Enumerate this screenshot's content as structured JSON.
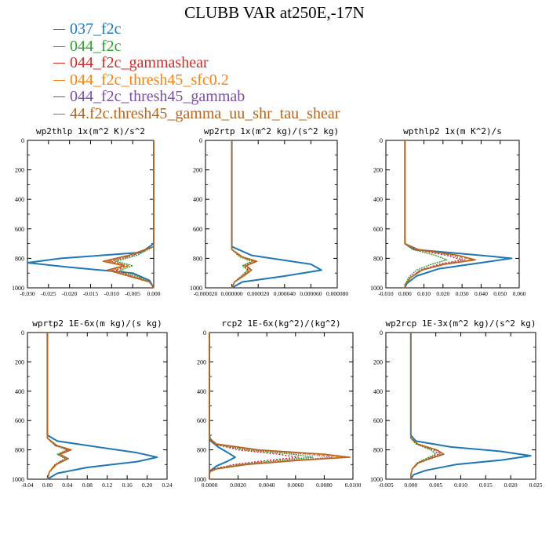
{
  "title": "CLUBB VAR at250E,-17N",
  "legend": [
    {
      "label": "037_f2c",
      "color": "#1f77b4"
    },
    {
      "label": "044_f2c",
      "color": "#2ca02c"
    },
    {
      "label": "044_f2c_gammashear",
      "color": "#d62728"
    },
    {
      "label": "044_f2c_thresh45_sfc0.2",
      "color": "#ff7f0e"
    },
    {
      "label": "044_f2c_thresh45_gammab",
      "color": "#7b4fa8"
    },
    {
      "label": "44.f2c.thresh45_gamma_uu_shr_tau_shear",
      "color": "#b5651d"
    }
  ],
  "chart_data": [
    {
      "type": "line",
      "title": "wp2thlp   1x(m^2 K)/s^2",
      "xlim": [
        -0.03,
        0.0
      ],
      "ylim": [
        1000,
        0
      ],
      "y_inverted": true,
      "xticks": [
        "-0.030",
        "-0.025",
        "-0.020",
        "-0.015",
        "-0.010",
        "-0.005",
        "0.000"
      ],
      "yticks": [
        "0",
        "200",
        "400",
        "600",
        "800",
        "1000"
      ],
      "series": [
        {
          "y": [
            0,
            700,
            760,
            800,
            830,
            860,
            900,
            950,
            1000
          ],
          "x": [
            0,
            0,
            -0.003,
            -0.022,
            -0.03,
            -0.02,
            -0.005,
            -0.001,
            0
          ]
        },
        {
          "y": [
            0,
            720,
            780,
            820,
            850,
            880,
            920,
            960,
            1000
          ],
          "x": [
            0,
            0,
            -0.004,
            -0.009,
            -0.005,
            -0.008,
            -0.004,
            -0.001,
            0
          ]
        },
        {
          "y": [
            0,
            720,
            780,
            820,
            850,
            880,
            920,
            960,
            1000
          ],
          "x": [
            0,
            0,
            -0.005,
            -0.01,
            -0.006,
            -0.009,
            -0.005,
            -0.001,
            0
          ]
        },
        {
          "y": [
            0,
            720,
            780,
            820,
            850,
            880,
            920,
            960,
            1000
          ],
          "x": [
            0,
            0,
            -0.005,
            -0.011,
            -0.006,
            -0.01,
            -0.005,
            -0.001,
            0
          ]
        },
        {
          "y": [
            0,
            720,
            780,
            820,
            850,
            880,
            920,
            960,
            1000
          ],
          "x": [
            0,
            0,
            -0.005,
            -0.011,
            -0.007,
            -0.01,
            -0.005,
            -0.001,
            0
          ]
        },
        {
          "y": [
            0,
            720,
            780,
            820,
            850,
            880,
            920,
            960,
            1000
          ],
          "x": [
            0,
            0,
            -0.006,
            -0.012,
            -0.007,
            -0.011,
            -0.006,
            -0.001,
            0
          ]
        }
      ]
    },
    {
      "type": "line",
      "title": "wp2rtp   1x(m^2 kg)/(s^2 kg)",
      "xlim": [
        -2e-05,
        8e-05
      ],
      "ylim": [
        1000,
        0
      ],
      "y_inverted": true,
      "xticks": [
        "-0.000020",
        "0.000000",
        "0.000020",
        "0.000040",
        "0.000060",
        "0.000080"
      ],
      "yticks": [
        "0",
        "200",
        "400",
        "600",
        "800",
        "1000"
      ],
      "series": [
        {
          "y": [
            0,
            720,
            780,
            840,
            880,
            920,
            960,
            1000
          ],
          "x": [
            0,
            0,
            1.5e-05,
            6e-05,
            6.8e-05,
            4e-05,
            8e-06,
            0
          ]
        },
        {
          "y": [
            0,
            740,
            790,
            820,
            850,
            880,
            920,
            960,
            1000
          ],
          "x": [
            0,
            0,
            6e-06,
            1.5e-05,
            8e-06,
            1.2e-05,
            7e-06,
            2e-06,
            0
          ]
        },
        {
          "y": [
            0,
            740,
            790,
            820,
            850,
            880,
            920,
            960,
            1000
          ],
          "x": [
            0,
            0,
            7e-06,
            1.7e-05,
            9e-06,
            1.3e-05,
            8e-06,
            2e-06,
            0
          ]
        },
        {
          "y": [
            0,
            740,
            790,
            820,
            850,
            880,
            920,
            960,
            1000
          ],
          "x": [
            0,
            0,
            7e-06,
            1.8e-05,
            1e-05,
            1.4e-05,
            8e-06,
            2e-06,
            0
          ]
        },
        {
          "y": [
            0,
            740,
            790,
            820,
            850,
            880,
            920,
            960,
            1000
          ],
          "x": [
            0,
            0,
            8e-06,
            1.8e-05,
            1e-05,
            1.5e-05,
            8e-06,
            2e-06,
            0
          ]
        },
        {
          "y": [
            0,
            740,
            790,
            820,
            850,
            880,
            920,
            960,
            1000
          ],
          "x": [
            0,
            0,
            8e-06,
            1.9e-05,
            1.1e-05,
            1.5e-05,
            9e-06,
            2e-06,
            0
          ]
        }
      ]
    },
    {
      "type": "line",
      "title": "wpthlp2   1x(m K^2)/s",
      "xlim": [
        -0.01,
        0.06
      ],
      "ylim": [
        1000,
        0
      ],
      "y_inverted": true,
      "xticks": [
        "-0.010",
        "0.000",
        "0.010",
        "0.020",
        "0.030",
        "0.040",
        "0.050",
        "0.060"
      ],
      "yticks": [
        "0",
        "200",
        "400",
        "600",
        "800",
        "1000"
      ],
      "series": [
        {
          "y": [
            0,
            700,
            740,
            780,
            800,
            830,
            870,
            920,
            970,
            1000
          ],
          "x": [
            0,
            0,
            0.005,
            0.04,
            0.056,
            0.04,
            0.018,
            0.006,
            0.001,
            0
          ]
        },
        {
          "y": [
            0,
            700,
            740,
            780,
            810,
            840,
            880,
            930,
            980,
            1000
          ],
          "x": [
            0,
            0,
            0.004,
            0.016,
            0.022,
            0.014,
            0.006,
            0.002,
            0,
            0
          ]
        },
        {
          "y": [
            0,
            700,
            740,
            780,
            810,
            840,
            880,
            930,
            980,
            1000
          ],
          "x": [
            0,
            0,
            0.005,
            0.022,
            0.03,
            0.018,
            0.008,
            0.003,
            0,
            0
          ]
        },
        {
          "y": [
            0,
            700,
            740,
            780,
            810,
            840,
            880,
            930,
            980,
            1000
          ],
          "x": [
            0,
            0,
            0.006,
            0.026,
            0.035,
            0.02,
            0.009,
            0.003,
            0,
            0
          ]
        },
        {
          "y": [
            0,
            700,
            740,
            780,
            810,
            840,
            880,
            930,
            980,
            1000
          ],
          "x": [
            0,
            0,
            0.006,
            0.024,
            0.032,
            0.019,
            0.008,
            0.003,
            0,
            0
          ]
        },
        {
          "y": [
            0,
            700,
            740,
            780,
            810,
            840,
            880,
            930,
            980,
            1000
          ],
          "x": [
            0,
            0,
            0.007,
            0.028,
            0.037,
            0.021,
            0.009,
            0.003,
            0,
            0
          ]
        }
      ]
    },
    {
      "type": "line",
      "title": "wprtp2   1E-6x(m kg)/(s kg)",
      "xlim": [
        -0.04,
        0.24
      ],
      "ylim": [
        1000,
        0
      ],
      "y_inverted": true,
      "xticks": [
        "-0.04",
        "0.00",
        "0.04",
        "0.08",
        "0.12",
        "0.16",
        "0.20",
        "0.24"
      ],
      "yticks": [
        "0",
        "200",
        "400",
        "600",
        "800",
        "1000"
      ],
      "series": [
        {
          "y": [
            0,
            700,
            740,
            780,
            820,
            850,
            880,
            920,
            960,
            1000
          ],
          "x": [
            0,
            0,
            0.02,
            0.1,
            0.18,
            0.22,
            0.18,
            0.08,
            0.02,
            0
          ]
        },
        {
          "y": [
            0,
            720,
            770,
            800,
            830,
            860,
            900,
            950,
            1000
          ],
          "x": [
            0,
            0,
            0.015,
            0.04,
            0.02,
            0.035,
            0.015,
            0.004,
            0
          ]
        },
        {
          "y": [
            0,
            720,
            770,
            800,
            830,
            860,
            900,
            950,
            1000
          ],
          "x": [
            0,
            0,
            0.016,
            0.042,
            0.022,
            0.038,
            0.016,
            0.004,
            0
          ]
        },
        {
          "y": [
            0,
            720,
            770,
            800,
            830,
            860,
            900,
            950,
            1000
          ],
          "x": [
            0,
            0,
            0.018,
            0.045,
            0.024,
            0.04,
            0.017,
            0.004,
            0
          ]
        },
        {
          "y": [
            0,
            720,
            770,
            800,
            830,
            860,
            900,
            950,
            1000
          ],
          "x": [
            0,
            0,
            0.017,
            0.044,
            0.023,
            0.039,
            0.016,
            0.004,
            0
          ]
        },
        {
          "y": [
            0,
            720,
            770,
            800,
            830,
            860,
            900,
            950,
            1000
          ],
          "x": [
            0,
            0,
            0.019,
            0.048,
            0.025,
            0.042,
            0.018,
            0.004,
            0
          ]
        }
      ]
    },
    {
      "type": "line",
      "title": "rcp2   1E-6x(kg^2)/(kg^2)",
      "xlim": [
        0.0,
        0.01
      ],
      "ylim": [
        1000,
        0
      ],
      "y_inverted": true,
      "xticks": [
        "0.0000",
        "0.0020",
        "0.0040",
        "0.0060",
        "0.0080",
        "0.0100"
      ],
      "yticks": [
        "0",
        "200",
        "400",
        "600",
        "800",
        "1000"
      ],
      "series": [
        {
          "y": [
            0,
            700,
            740,
            780,
            820,
            850,
            880,
            910,
            940,
            960,
            1000
          ],
          "x": [
            0,
            0,
            0.0001,
            0.0006,
            0.0013,
            0.0018,
            0.0012,
            0.0005,
            0.0001,
            0,
            0
          ]
        },
        {
          "y": [
            0,
            720,
            760,
            800,
            830,
            850,
            870,
            900,
            930,
            950,
            1000
          ],
          "x": [
            0,
            0,
            0.0003,
            0.0025,
            0.0058,
            0.0072,
            0.005,
            0.002,
            0.0004,
            0,
            0
          ]
        },
        {
          "y": [
            0,
            720,
            760,
            800,
            830,
            850,
            870,
            900,
            930,
            950,
            1000
          ],
          "x": [
            0,
            0,
            0.0003,
            0.002,
            0.0048,
            0.0062,
            0.0042,
            0.0017,
            0.0003,
            0,
            0
          ]
        },
        {
          "y": [
            0,
            720,
            760,
            800,
            830,
            850,
            870,
            900,
            930,
            950,
            1000
          ],
          "x": [
            0,
            0,
            0.0004,
            0.003,
            0.0072,
            0.0092,
            0.006,
            0.0024,
            0.0005,
            0,
            0
          ]
        },
        {
          "y": [
            0,
            720,
            760,
            800,
            830,
            850,
            870,
            900,
            930,
            950,
            1000
          ],
          "x": [
            0,
            0,
            0.0003,
            0.0027,
            0.0066,
            0.0085,
            0.0056,
            0.0022,
            0.0004,
            0,
            0
          ]
        },
        {
          "y": [
            0,
            720,
            760,
            800,
            830,
            850,
            870,
            900,
            930,
            950,
            1000
          ],
          "x": [
            0,
            0,
            0.0005,
            0.0034,
            0.008,
            0.0098,
            0.0065,
            0.0026,
            0.0005,
            0,
            0
          ]
        }
      ]
    },
    {
      "type": "line",
      "title": "wp2rcp   1E-3x(m^2 kg)/(s^2 kg)",
      "xlim": [
        -0.005,
        0.025
      ],
      "ylim": [
        1000,
        0
      ],
      "y_inverted": true,
      "xticks": [
        "-0.005",
        "0.000",
        "0.005",
        "0.010",
        "0.015",
        "0.020",
        "0.025"
      ],
      "yticks": [
        "0",
        "200",
        "400",
        "600",
        "800",
        "1000"
      ],
      "series": [
        {
          "y": [
            0,
            700,
            740,
            780,
            810,
            840,
            870,
            900,
            940,
            970,
            1000
          ],
          "x": [
            0,
            0,
            0.001,
            0.008,
            0.018,
            0.024,
            0.018,
            0.009,
            0.003,
            0.0005,
            0
          ]
        },
        {
          "y": [
            0,
            720,
            760,
            800,
            830,
            860,
            890,
            930,
            970,
            1000
          ],
          "x": [
            0,
            0,
            0.001,
            0.004,
            0.005,
            0.003,
            0.0012,
            0.0003,
            0,
            0
          ]
        },
        {
          "y": [
            0,
            720,
            760,
            800,
            830,
            860,
            890,
            930,
            970,
            1000
          ],
          "x": [
            0,
            0,
            0.0012,
            0.0045,
            0.0055,
            0.0034,
            0.0013,
            0.0003,
            0,
            0
          ]
        },
        {
          "y": [
            0,
            720,
            760,
            800,
            830,
            860,
            890,
            930,
            970,
            1000
          ],
          "x": [
            0,
            0,
            0.0013,
            0.005,
            0.0062,
            0.0037,
            0.0014,
            0.0003,
            0,
            0
          ]
        },
        {
          "y": [
            0,
            720,
            760,
            800,
            830,
            860,
            890,
            930,
            970,
            1000
          ],
          "x": [
            0,
            0,
            0.0012,
            0.0048,
            0.006,
            0.0036,
            0.0014,
            0.0003,
            0,
            0
          ]
        },
        {
          "y": [
            0,
            720,
            760,
            800,
            830,
            860,
            890,
            930,
            970,
            1000
          ],
          "x": [
            0,
            0,
            0.0014,
            0.0052,
            0.0066,
            0.0039,
            0.0015,
            0.0003,
            0,
            0
          ]
        }
      ]
    }
  ]
}
